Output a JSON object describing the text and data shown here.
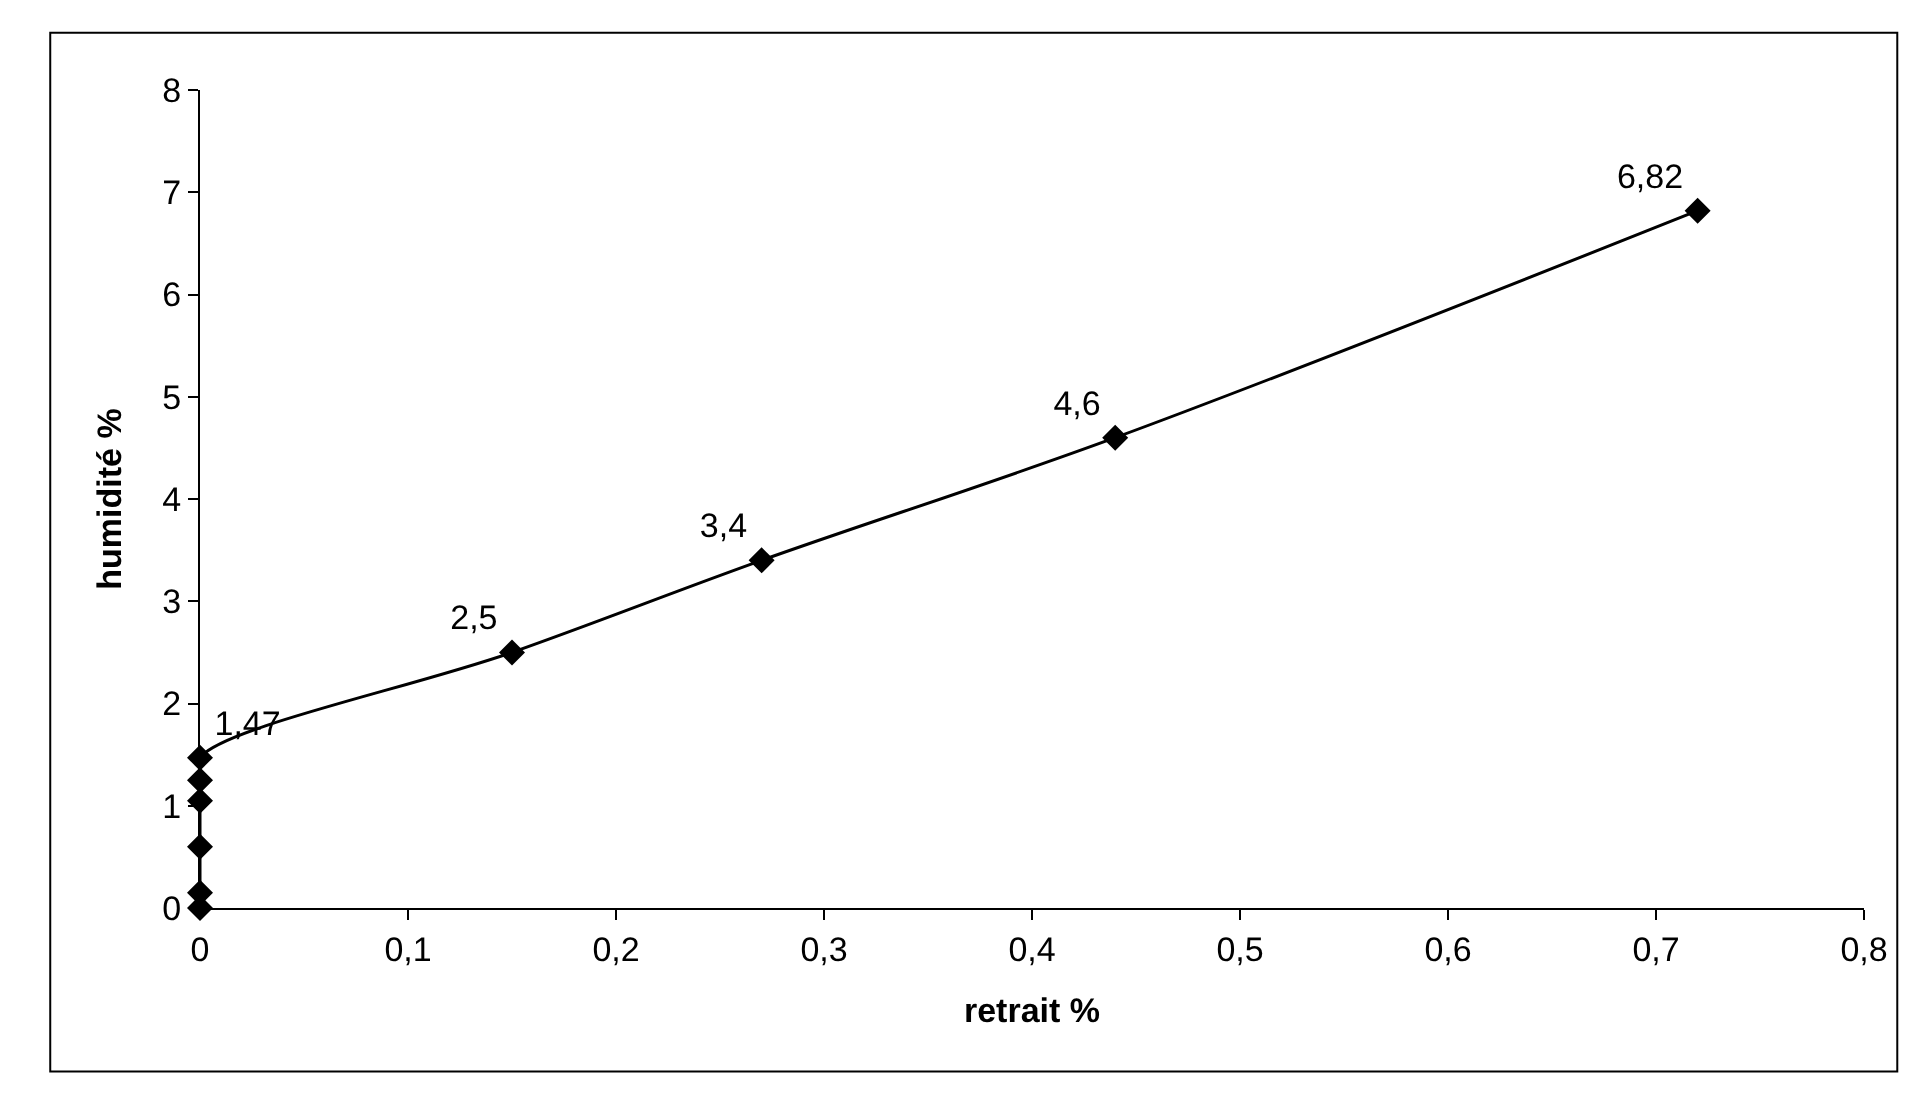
{
  "chart_data": {
    "type": "line",
    "xlabel": "retrait %",
    "ylabel": "humidité %",
    "x": [
      0,
      0,
      0,
      0,
      0,
      0,
      0.15,
      0.27,
      0.44,
      0.72
    ],
    "series": [
      {
        "color": "#000000",
        "values": [
          0,
          0.15,
          0.6,
          1.05,
          1.25,
          1.47,
          2.5,
          3.4,
          4.6,
          6.82
        ],
        "value_labels": [
          null,
          null,
          null,
          null,
          null,
          "1,47",
          "2,5",
          "3,4",
          "4,6",
          "6,82"
        ]
      }
    ],
    "xlim": [
      0,
      0.8
    ],
    "xticks": [
      {
        "value": 0,
        "label": "0"
      },
      {
        "value": 0.1,
        "label": "0,1"
      },
      {
        "value": 0.2,
        "label": "0,2"
      },
      {
        "value": 0.3,
        "label": "0,3"
      },
      {
        "value": 0.4,
        "label": "0,4"
      },
      {
        "value": 0.5,
        "label": "0,5"
      },
      {
        "value": 0.6,
        "label": "0,6"
      },
      {
        "value": 0.7,
        "label": "0,7"
      },
      {
        "value": 0.8,
        "label": "0,8"
      }
    ],
    "ylim": [
      0,
      8
    ],
    "yticks": [
      0,
      1,
      2,
      3,
      4,
      5,
      6,
      7,
      8
    ],
    "grid": false,
    "legend": false,
    "marker": "diamond",
    "line_style": "solid"
  }
}
